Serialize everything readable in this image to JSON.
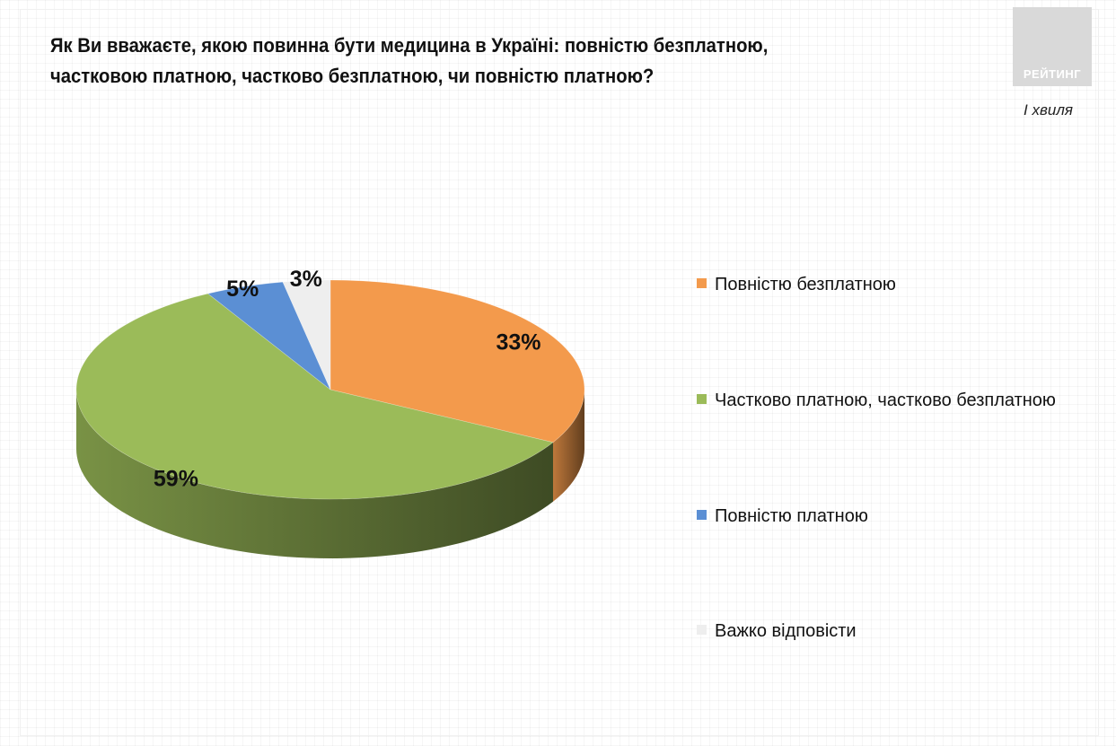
{
  "title": {
    "line1": "Як Ви вважаєте, якою повинна бути медицина в Україні: повністю безплатною,",
    "line2": "частковою платною, частково безплатною, чи повністю платною?"
  },
  "logo": {
    "text": "РЕЙТИНГ"
  },
  "wave_label": "I хвиля",
  "chart_data": {
    "type": "pie",
    "title": "Як Ви вважаєте, якою повинна бути медицина в Україні: повністю безплатною, частковою платною, частково безплатною, чи повністю платною?",
    "style": "3d",
    "legend_position": "right",
    "slices": [
      {
        "label": "Повністю безплатною",
        "value": 33,
        "display": "33%",
        "color": "#F39A4C"
      },
      {
        "label": "Частково платною, частково безплатною",
        "value": 59,
        "display": "59%",
        "color": "#9BBB59"
      },
      {
        "label": "Повністю платною",
        "value": 5,
        "display": "5%",
        "color": "#5B8FD4"
      },
      {
        "label": "Важко відповісти",
        "value": 3,
        "display": "3%",
        "color": "#EEEEEE"
      }
    ]
  }
}
